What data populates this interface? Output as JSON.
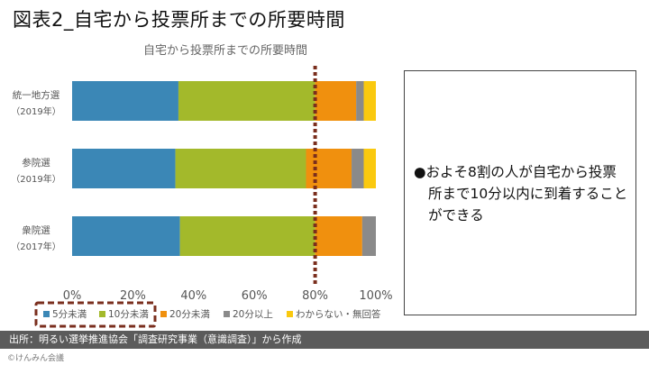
{
  "slide": {
    "title": "図表2_自宅から投票所までの所要時間",
    "source": "出所：明るい選挙推進協会「調査研究事業（意識調査）」から作成",
    "copyright": "©けんみん会議",
    "callout": "●およそ8割の人が自宅から投票所まで10分以内に到着することができる"
  },
  "chart_data": {
    "type": "bar",
    "orientation": "horizontal",
    "stacked": true,
    "title": "自宅から投票所までの所要時間",
    "categories": [
      {
        "name": "統一地方選",
        "sub": "（2019年）"
      },
      {
        "name": "参院選",
        "sub": "（2019年）"
      },
      {
        "name": "衆院選",
        "sub": "（2017年）"
      }
    ],
    "series": [
      {
        "name": "5分未満",
        "color": "#3b87b6",
        "values": [
          35,
          34,
          35.5
        ]
      },
      {
        "name": "10分未満",
        "color": "#a3b92b",
        "values": [
          45,
          43,
          44.5
        ]
      },
      {
        "name": "20分未満",
        "color": "#f0900e",
        "values": [
          13.5,
          15,
          15.5
        ]
      },
      {
        "name": "20分以上",
        "color": "#8a8a8a",
        "values": [
          2.5,
          4,
          4.5
        ]
      },
      {
        "name": "わからない・無回答",
        "color": "#fac90f",
        "values": [
          4,
          4,
          0
        ]
      }
    ],
    "xlim": [
      0,
      100
    ],
    "x_ticks": [
      "0%",
      "20%",
      "40%",
      "60%",
      "80%",
      "100%"
    ],
    "reference_line": {
      "value": 80,
      "color": "#7a2e1d",
      "style": "dotted"
    },
    "legend_placement": "bottom",
    "legend_highlight": {
      "series": [
        "5分未満",
        "10分未満"
      ],
      "color": "#7a2e1d",
      "style": "dashed"
    }
  }
}
